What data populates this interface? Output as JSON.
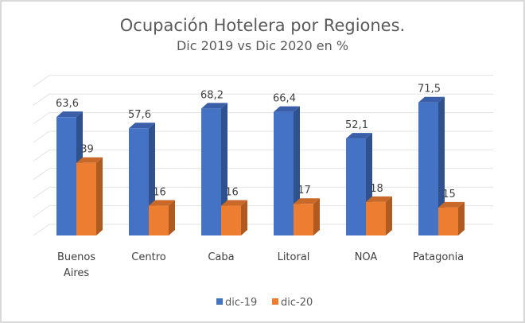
{
  "chart_data": {
    "type": "bar",
    "title": "Ocupación Hotelera por Regiones.",
    "subtitle": "Dic 2019 vs Dic 2020 en %",
    "categories": [
      "Buenos Aires",
      "Centro",
      "Caba",
      "Litoral",
      "NOA",
      "Patagonia"
    ],
    "category_lines": [
      [
        "Buenos",
        "Aires"
      ],
      [
        "Centro"
      ],
      [
        "Caba"
      ],
      [
        "Litoral"
      ],
      [
        "NOA"
      ],
      [
        "Patagonia"
      ]
    ],
    "series": [
      {
        "name": "dic-19",
        "values": [
          63.6,
          57.6,
          68.2,
          66.4,
          52.1,
          71.5
        ],
        "labels": [
          "63,6",
          "57,6",
          "68,2",
          "66,4",
          "52,1",
          "71,5"
        ],
        "color": "#4472c4",
        "side_color": "#2f528f",
        "top_color": "#3a5fa8"
      },
      {
        "name": "dic-20",
        "values": [
          39,
          16,
          16,
          17,
          18,
          15
        ],
        "labels": [
          "39",
          "16",
          "16",
          "17",
          "18",
          "15"
        ],
        "color": "#ed7d31",
        "side_color": "#ae5a21",
        "top_color": "#c8692a"
      }
    ],
    "ylim": [
      0,
      80
    ],
    "ytick_step": 10,
    "grid": true,
    "legend": "bottom",
    "xlabel": "",
    "ylabel": "",
    "style": "3d-column"
  }
}
